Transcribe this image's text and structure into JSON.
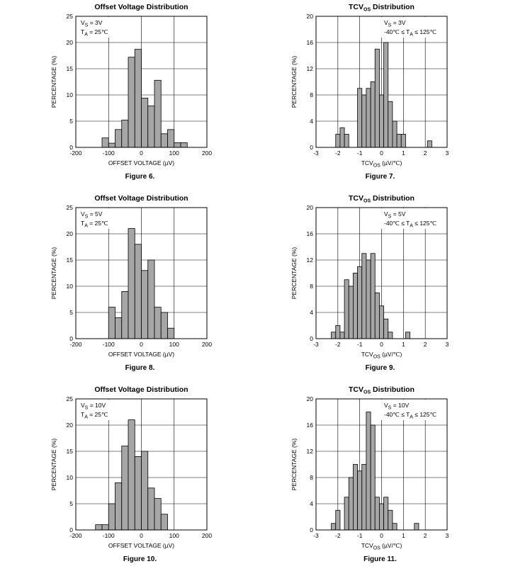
{
  "chart_data": [
    {
      "type": "bar",
      "title": "Offset Voltage Distribution",
      "xlabel": "OFFSET VOLTAGE (µV)",
      "ylabel": "PERCENTAGE (%)",
      "caption": "Figure 6.",
      "conditions": [
        {
          "main": "V",
          "sub": "S",
          "rest": " = 3V"
        },
        {
          "main": "T",
          "sub": "A",
          "rest": " = 25℃"
        }
      ],
      "xlim": [
        -200,
        200
      ],
      "ylim": [
        0,
        25
      ],
      "xticks": [
        -200,
        -100,
        0,
        100,
        200
      ],
      "yticks": [
        0,
        5,
        10,
        15,
        20,
        25
      ],
      "bin_width": 20,
      "bins": [
        {
          "x": -110,
          "y": 1.8
        },
        {
          "x": -90,
          "y": 0.8
        },
        {
          "x": -70,
          "y": 3.4
        },
        {
          "x": -50,
          "y": 5.2
        },
        {
          "x": -30,
          "y": 17.2
        },
        {
          "x": -10,
          "y": 18.7
        },
        {
          "x": 10,
          "y": 9.4
        },
        {
          "x": 30,
          "y": 7.9
        },
        {
          "x": 50,
          "y": 12.8
        },
        {
          "x": 70,
          "y": 2.6
        },
        {
          "x": 90,
          "y": 3.4
        },
        {
          "x": 110,
          "y": 0.9
        },
        {
          "x": 130,
          "y": 0.9
        }
      ]
    },
    {
      "type": "bar",
      "title_main": "TCV",
      "title_sub": "OS",
      "title_rest": " Distribution",
      "xlabel_main": "TCV",
      "xlabel_sub": "OS",
      "xlabel_rest": " (µV/℃)",
      "ylabel": "PERCENTAGE (%)",
      "caption": "Figure 7.",
      "conditions": [
        {
          "main": "V",
          "sub": "S",
          "rest": " = 3V"
        },
        {
          "pre": "-40℃ ≤ T",
          "sub": "A",
          "rest": " ≤ 125℃"
        }
      ],
      "xlim": [
        -3,
        3
      ],
      "ylim": [
        0,
        20
      ],
      "xticks": [
        -3,
        -2,
        -1,
        0,
        1,
        2,
        3
      ],
      "yticks": [
        0,
        4,
        8,
        12,
        16,
        20
      ],
      "bin_width": 0.2,
      "bins": [
        {
          "x": -2.0,
          "y": 2
        },
        {
          "x": -1.8,
          "y": 3
        },
        {
          "x": -1.6,
          "y": 2
        },
        {
          "x": -1.0,
          "y": 9
        },
        {
          "x": -0.8,
          "y": 8
        },
        {
          "x": -0.6,
          "y": 9
        },
        {
          "x": -0.4,
          "y": 10
        },
        {
          "x": -0.2,
          "y": 15
        },
        {
          "x": 0.0,
          "y": 8
        },
        {
          "x": 0.2,
          "y": 16
        },
        {
          "x": 0.4,
          "y": 7
        },
        {
          "x": 0.6,
          "y": 4
        },
        {
          "x": 0.8,
          "y": 2
        },
        {
          "x": 1.0,
          "y": 2
        },
        {
          "x": 2.2,
          "y": 1
        }
      ]
    },
    {
      "type": "bar",
      "title": "Offset Voltage Distribution",
      "xlabel": "OFFSET VOLTAGE (µV)",
      "ylabel": "PERCENTAGE (%)",
      "caption": "Figure 8.",
      "conditions": [
        {
          "main": "V",
          "sub": "S",
          "rest": " = 5V"
        },
        {
          "main": "T",
          "sub": "A",
          "rest": " = 25℃"
        }
      ],
      "xlim": [
        -200,
        200
      ],
      "ylim": [
        0,
        25
      ],
      "xticks": [
        -200,
        -100,
        0,
        100,
        200
      ],
      "yticks": [
        0,
        5,
        10,
        15,
        20,
        25
      ],
      "bin_width": 20,
      "bins": [
        {
          "x": -90,
          "y": 6
        },
        {
          "x": -70,
          "y": 4
        },
        {
          "x": -50,
          "y": 9
        },
        {
          "x": -30,
          "y": 21
        },
        {
          "x": -10,
          "y": 18
        },
        {
          "x": 10,
          "y": 13
        },
        {
          "x": 30,
          "y": 15
        },
        {
          "x": 50,
          "y": 6
        },
        {
          "x": 70,
          "y": 5
        },
        {
          "x": 90,
          "y": 2
        }
      ]
    },
    {
      "type": "bar",
      "title_main": "TCV",
      "title_sub": "OS",
      "title_rest": " Distribution",
      "xlabel_main": "TCV",
      "xlabel_sub": "OS",
      "xlabel_rest": " (µV/℃)",
      "ylabel": "PERCENTAGE (%)",
      "caption": "Figure 9.",
      "conditions": [
        {
          "main": "V",
          "sub": "S",
          "rest": " = 5V"
        },
        {
          "pre": "-40℃ ≤ T",
          "sub": "A",
          "rest": " ≤ 125℃"
        }
      ],
      "xlim": [
        -3,
        3
      ],
      "ylim": [
        0,
        20
      ],
      "xticks": [
        -3,
        -2,
        -1,
        0,
        1,
        2,
        3
      ],
      "yticks": [
        0,
        4,
        8,
        12,
        16,
        20
      ],
      "bin_width": 0.2,
      "bins": [
        {
          "x": -2.2,
          "y": 1
        },
        {
          "x": -2.0,
          "y": 2
        },
        {
          "x": -1.8,
          "y": 1
        },
        {
          "x": -1.6,
          "y": 9
        },
        {
          "x": -1.4,
          "y": 8
        },
        {
          "x": -1.2,
          "y": 10
        },
        {
          "x": -1.0,
          "y": 11
        },
        {
          "x": -0.8,
          "y": 13
        },
        {
          "x": -0.6,
          "y": 12
        },
        {
          "x": -0.4,
          "y": 13
        },
        {
          "x": -0.2,
          "y": 7
        },
        {
          "x": 0.0,
          "y": 5
        },
        {
          "x": 0.2,
          "y": 3
        },
        {
          "x": 0.4,
          "y": 1
        },
        {
          "x": 1.2,
          "y": 1
        }
      ]
    },
    {
      "type": "bar",
      "title": "Offset Voltage Distribution",
      "xlabel": "OFFSET VOLTAGE (µV)",
      "ylabel": "PERCENTAGE (%)",
      "caption": "Figure 10.",
      "conditions": [
        {
          "main": "V",
          "sub": "S",
          "rest": " = 10V"
        },
        {
          "main": "T",
          "sub": "A",
          "rest": " = 25℃"
        }
      ],
      "xlim": [
        -200,
        200
      ],
      "ylim": [
        0,
        25
      ],
      "xticks": [
        -200,
        -100,
        0,
        100,
        200
      ],
      "yticks": [
        0,
        5,
        10,
        15,
        20,
        25
      ],
      "bin_width": 20,
      "bins": [
        {
          "x": -130,
          "y": 1
        },
        {
          "x": -110,
          "y": 1
        },
        {
          "x": -90,
          "y": 5
        },
        {
          "x": -70,
          "y": 9
        },
        {
          "x": -50,
          "y": 16
        },
        {
          "x": -30,
          "y": 21
        },
        {
          "x": -10,
          "y": 14
        },
        {
          "x": 10,
          "y": 15
        },
        {
          "x": 30,
          "y": 8
        },
        {
          "x": 50,
          "y": 6
        },
        {
          "x": 70,
          "y": 3
        }
      ]
    },
    {
      "type": "bar",
      "title_main": "TCV",
      "title_sub": "OS",
      "title_rest": " Distribution",
      "xlabel_main": "TCV",
      "xlabel_sub": "OS",
      "xlabel_rest": " (µV/℃)",
      "ylabel": "PERCENTAGE (%)",
      "caption": "Figure 11.",
      "conditions": [
        {
          "main": "V",
          "sub": "S",
          "rest": " = 10V"
        },
        {
          "pre": "-40℃ ≤ T",
          "sub": "A",
          "rest": " ≤ 125℃"
        }
      ],
      "xlim": [
        -3,
        3
      ],
      "ylim": [
        0,
        20
      ],
      "xticks": [
        -3,
        -2,
        -1,
        0,
        1,
        2,
        3
      ],
      "yticks": [
        0,
        4,
        8,
        12,
        16,
        20
      ],
      "bin_width": 0.2,
      "bins": [
        {
          "x": -2.2,
          "y": 1
        },
        {
          "x": -2.0,
          "y": 3
        },
        {
          "x": -1.6,
          "y": 5
        },
        {
          "x": -1.4,
          "y": 8
        },
        {
          "x": -1.2,
          "y": 10
        },
        {
          "x": -1.0,
          "y": 9
        },
        {
          "x": -0.8,
          "y": 10
        },
        {
          "x": -0.6,
          "y": 18
        },
        {
          "x": -0.4,
          "y": 16
        },
        {
          "x": -0.2,
          "y": 5
        },
        {
          "x": 0.0,
          "y": 4
        },
        {
          "x": 0.2,
          "y": 5
        },
        {
          "x": 0.4,
          "y": 3
        },
        {
          "x": 0.6,
          "y": 1
        },
        {
          "x": 1.6,
          "y": 1
        }
      ]
    }
  ]
}
